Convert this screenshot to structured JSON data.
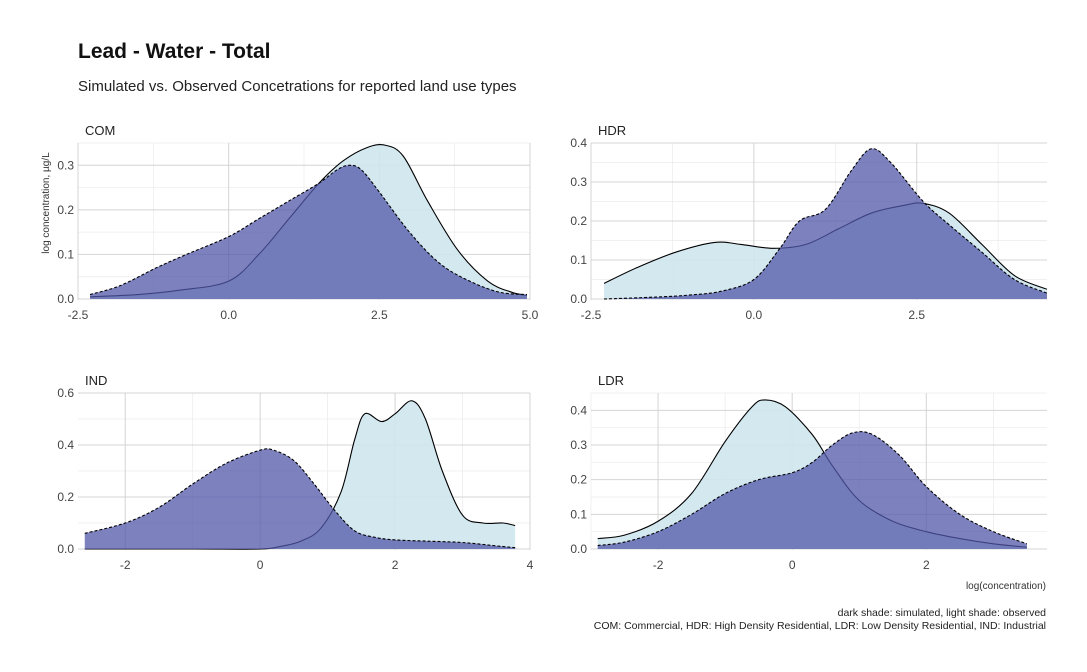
{
  "title": "Lead - Water - Total",
  "subtitle": "Simulated vs. Observed Concetrations for reported land use types",
  "caption_line1": "dark shade: simulated, light shade: observed",
  "caption_line2": "COM: Commercial, HDR: High Density Residential, LDR: Low Density Residential, IND: Industrial",
  "xlabel": "log(concentration)",
  "ylabel": "log concentration, µg/L",
  "colors": {
    "simulated": "#5258aa",
    "observed": "#cfe6ee",
    "line": "#000000"
  },
  "chart_data": [
    {
      "type": "area",
      "panel": "COM",
      "xlim": [
        -2.5,
        5.0
      ],
      "ylim": [
        0,
        0.35
      ],
      "xticks": [
        -2.5,
        0.0,
        2.5,
        5.0
      ],
      "xtick_labels": [
        "-2.5",
        "0.0",
        "2.5",
        "5.0"
      ],
      "yticks": [
        0.0,
        0.1,
        0.2,
        0.3
      ],
      "ytick_labels": [
        "0.0",
        "0.1",
        "0.2",
        "0.3"
      ],
      "series": [
        {
          "name": "observed",
          "x": [
            -2.3,
            -1.5,
            -0.8,
            0.0,
            0.5,
            1.0,
            1.5,
            1.9,
            2.3,
            2.6,
            2.9,
            3.3,
            3.8,
            4.3,
            4.7,
            4.95
          ],
          "y": [
            0.005,
            0.01,
            0.02,
            0.04,
            0.1,
            0.18,
            0.26,
            0.31,
            0.34,
            0.345,
            0.32,
            0.22,
            0.11,
            0.04,
            0.015,
            0.008
          ]
        },
        {
          "name": "simulated",
          "x": [
            -2.3,
            -1.8,
            -1.2,
            -0.7,
            0.0,
            0.5,
            1.0,
            1.5,
            1.8,
            2.0,
            2.2,
            2.5,
            3.0,
            3.5,
            4.0,
            4.5,
            4.95
          ],
          "y": [
            0.01,
            0.03,
            0.07,
            0.1,
            0.14,
            0.18,
            0.22,
            0.26,
            0.29,
            0.3,
            0.29,
            0.24,
            0.15,
            0.08,
            0.04,
            0.015,
            0.01
          ]
        }
      ]
    },
    {
      "type": "area",
      "panel": "HDR",
      "xlim": [
        -2.5,
        4.5
      ],
      "ylim": [
        0,
        0.4
      ],
      "xticks": [
        -2.5,
        0.0,
        2.5
      ],
      "xtick_labels": [
        "-2.5",
        "0.0",
        "2.5"
      ],
      "yticks": [
        0.0,
        0.1,
        0.2,
        0.3,
        0.4
      ],
      "ytick_labels": [
        "0.0",
        "0.1",
        "0.2",
        "0.3",
        "0.4"
      ],
      "series": [
        {
          "name": "observed",
          "x": [
            -2.3,
            -1.8,
            -1.2,
            -0.6,
            -0.2,
            0.3,
            0.8,
            1.3,
            1.8,
            2.3,
            2.6,
            3.0,
            3.5,
            4.0,
            4.5
          ],
          "y": [
            0.04,
            0.08,
            0.12,
            0.145,
            0.14,
            0.13,
            0.14,
            0.18,
            0.22,
            0.24,
            0.245,
            0.22,
            0.14,
            0.06,
            0.025
          ]
        },
        {
          "name": "simulated",
          "x": [
            -2.3,
            -1.5,
            -1.0,
            -0.5,
            0.0,
            0.4,
            0.7,
            1.1,
            1.5,
            1.8,
            2.1,
            2.6,
            3.0,
            3.5,
            4.0,
            4.5
          ],
          "y": [
            0.0,
            0.005,
            0.01,
            0.02,
            0.05,
            0.13,
            0.2,
            0.23,
            0.33,
            0.385,
            0.35,
            0.25,
            0.19,
            0.12,
            0.05,
            0.015
          ]
        }
      ]
    },
    {
      "type": "area",
      "panel": "IND",
      "xlim": [
        -2.7,
        4.0
      ],
      "ylim": [
        0,
        0.6
      ],
      "xticks": [
        -2,
        0,
        2,
        4
      ],
      "xtick_labels": [
        "-2",
        "0",
        "2",
        "4"
      ],
      "yticks": [
        0.0,
        0.2,
        0.4,
        0.6
      ],
      "ytick_labels": [
        "0.0",
        "0.2",
        "0.4",
        "0.6"
      ],
      "series": [
        {
          "name": "observed",
          "x": [
            -2.6,
            -1.0,
            0.0,
            0.3,
            0.6,
            0.9,
            1.2,
            1.4,
            1.55,
            1.8,
            2.0,
            2.25,
            2.45,
            2.7,
            3.0,
            3.3,
            3.6,
            3.78
          ],
          "y": [
            0.0,
            0.0,
            0.0,
            0.01,
            0.03,
            0.08,
            0.22,
            0.42,
            0.52,
            0.49,
            0.52,
            0.57,
            0.5,
            0.3,
            0.13,
            0.1,
            0.1,
            0.09
          ]
        },
        {
          "name": "simulated",
          "x": [
            -2.6,
            -2.0,
            -1.5,
            -1.0,
            -0.5,
            0.0,
            0.2,
            0.5,
            0.8,
            1.1,
            1.4,
            1.7,
            2.0,
            2.5,
            3.0,
            3.5,
            3.78
          ],
          "y": [
            0.06,
            0.1,
            0.16,
            0.25,
            0.33,
            0.38,
            0.38,
            0.34,
            0.25,
            0.15,
            0.07,
            0.045,
            0.035,
            0.03,
            0.025,
            0.012,
            0.005
          ]
        }
      ]
    },
    {
      "type": "area",
      "panel": "LDR",
      "xlim": [
        -3.0,
        3.8
      ],
      "ylim": [
        0,
        0.45
      ],
      "xticks": [
        -2,
        0,
        2
      ],
      "xtick_labels": [
        "-2",
        "0",
        "2"
      ],
      "yticks": [
        0.0,
        0.1,
        0.2,
        0.3,
        0.4
      ],
      "ytick_labels": [
        "0.0",
        "0.1",
        "0.2",
        "0.3",
        "0.4"
      ],
      "series": [
        {
          "name": "observed",
          "x": [
            -2.9,
            -2.5,
            -2.0,
            -1.5,
            -1.0,
            -0.6,
            -0.4,
            -0.1,
            0.3,
            0.6,
            1.0,
            1.5,
            2.0,
            2.5,
            3.0,
            3.5
          ],
          "y": [
            0.03,
            0.04,
            0.08,
            0.16,
            0.31,
            0.41,
            0.43,
            0.41,
            0.33,
            0.24,
            0.14,
            0.08,
            0.05,
            0.03,
            0.015,
            0.005
          ]
        },
        {
          "name": "simulated",
          "x": [
            -2.9,
            -2.5,
            -2.0,
            -1.5,
            -1.0,
            -0.5,
            0.0,
            0.3,
            0.6,
            0.9,
            1.2,
            1.6,
            2.0,
            2.5,
            3.0,
            3.5
          ],
          "y": [
            0.01,
            0.02,
            0.05,
            0.1,
            0.16,
            0.2,
            0.22,
            0.25,
            0.3,
            0.335,
            0.33,
            0.27,
            0.18,
            0.1,
            0.05,
            0.015
          ]
        }
      ]
    }
  ]
}
